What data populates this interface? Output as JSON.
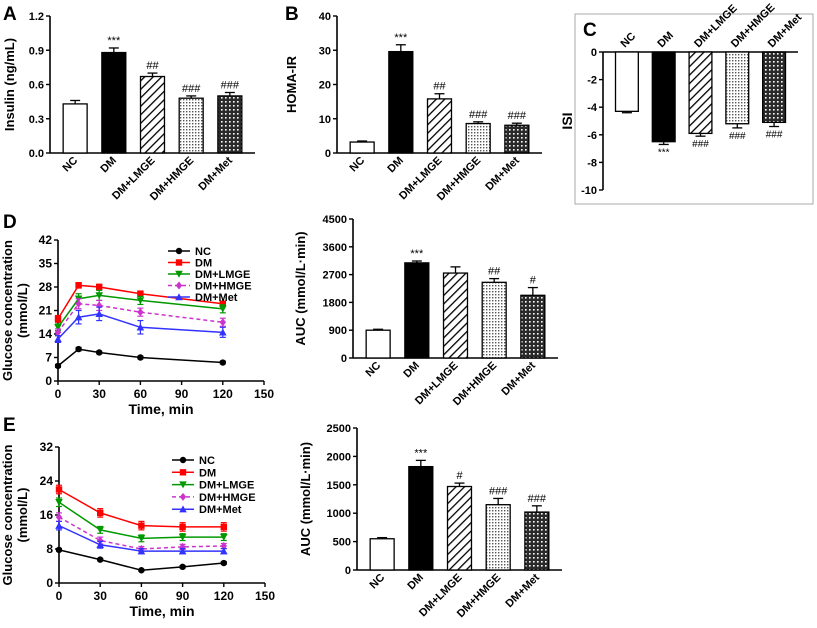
{
  "panels": [
    {
      "letter": "A"
    },
    {
      "letter": "B"
    },
    {
      "letter": "C"
    },
    {
      "letter": "D"
    },
    {
      "letter": "E"
    }
  ],
  "chart_data": [
    {
      "id": "A",
      "type": "bar",
      "ylabel": "Insulin (ng/mL)",
      "ylim": [
        0,
        1.2
      ],
      "yticks": [
        "0.0",
        "0.3",
        "0.6",
        "0.9",
        "1.2"
      ],
      "categories": [
        "NC",
        "DM",
        "DM+LMGE",
        "DM+HMGE",
        "DM+Met"
      ],
      "values": [
        0.43,
        0.88,
        0.67,
        0.48,
        0.5
      ],
      "errors": [
        0.03,
        0.04,
        0.03,
        0.02,
        0.03
      ],
      "annotations": [
        "",
        "***",
        "##",
        "###",
        "###"
      ],
      "patterns": [
        "white",
        "black",
        "diag",
        "dots",
        "grid"
      ]
    },
    {
      "id": "B",
      "type": "bar",
      "ylabel": "HOMA-IR",
      "ylim": [
        0,
        40
      ],
      "yticks": [
        "0",
        "10",
        "20",
        "30",
        "40"
      ],
      "categories": [
        "NC",
        "DM",
        "DM+LMGE",
        "DM+HMGE",
        "DM+Met"
      ],
      "values": [
        3.2,
        29.6,
        15.8,
        8.6,
        8.1
      ],
      "errors": [
        0.3,
        2.0,
        1.5,
        0.5,
        0.6
      ],
      "annotations": [
        "",
        "***",
        "##",
        "###",
        "###"
      ],
      "patterns": [
        "white",
        "black",
        "diag",
        "dots",
        "grid"
      ]
    },
    {
      "id": "C",
      "type": "bar",
      "ylabel": "ISI",
      "ylim": [
        -10,
        0
      ],
      "yticks": [
        "0",
        "-2",
        "-4",
        "-6",
        "-8",
        "-10"
      ],
      "categories": [
        "NC",
        "DM",
        "DM+LMGE",
        "DM+HMGE",
        "DM+Met"
      ],
      "values": [
        -4.3,
        -6.5,
        -5.9,
        -5.2,
        -5.1
      ],
      "errors": [
        0.1,
        0.2,
        0.2,
        0.3,
        0.3
      ],
      "annotations": [
        "",
        "***",
        "###",
        "###",
        "###"
      ],
      "patterns": [
        "white",
        "black",
        "diag",
        "dots",
        "grid"
      ]
    },
    {
      "id": "D-line",
      "type": "line",
      "ylabel": "Glucose concentration (mmol/L)",
      "xlabel": "Time, min",
      "xlim": [
        0,
        150
      ],
      "ylim": [
        0,
        42
      ],
      "xticks": [
        "0",
        "30",
        "60",
        "90",
        "120",
        "150"
      ],
      "yticks": [
        "0",
        "7",
        "14",
        "21",
        "28",
        "35",
        "42"
      ],
      "x": [
        0,
        15,
        30,
        60,
        120
      ],
      "series": [
        {
          "name": "NC",
          "color": "#000000",
          "marker": "circle",
          "dash": "",
          "values": [
            4.5,
            9.5,
            8.5,
            7.0,
            5.5
          ],
          "errors": [
            0.4,
            0.5,
            0.4,
            0.4,
            0.4
          ]
        },
        {
          "name": "DM",
          "color": "#ff0000",
          "marker": "square",
          "dash": "",
          "values": [
            18.5,
            28.5,
            28.0,
            26.0,
            23.0
          ],
          "errors": [
            1.0,
            0.8,
            0.8,
            0.8,
            0.8
          ]
        },
        {
          "name": "DM+LMGE",
          "color": "#009900",
          "marker": "triangle-down",
          "dash": "",
          "values": [
            16.0,
            24.5,
            25.5,
            24.0,
            21.5
          ],
          "errors": [
            1.0,
            1.5,
            1.5,
            1.2,
            1.2
          ]
        },
        {
          "name": "DM+HMGE",
          "color": "#cc33cc",
          "marker": "diamond",
          "dash": "4,3",
          "values": [
            14.5,
            23.0,
            22.5,
            20.5,
            17.5
          ],
          "errors": [
            1.0,
            1.5,
            1.5,
            1.2,
            1.2
          ]
        },
        {
          "name": "DM+Met",
          "color": "#3333ff",
          "marker": "triangle-up",
          "dash": "",
          "values": [
            12.5,
            19.0,
            20.0,
            16.0,
            14.5
          ],
          "errors": [
            1.0,
            2.0,
            2.0,
            2.0,
            1.5
          ]
        }
      ]
    },
    {
      "id": "D-auc",
      "type": "bar",
      "ylabel": "AUC (mmol/L·min)",
      "ylim": [
        0,
        4500
      ],
      "yticks": [
        "0",
        "900",
        "1800",
        "2700",
        "3600",
        "4500"
      ],
      "categories": [
        "NC",
        "DM",
        "DM+LMGE",
        "DM+HMGE",
        "DM+Met"
      ],
      "values": [
        900,
        3080,
        2750,
        2450,
        2030
      ],
      "errors": [
        30,
        60,
        200,
        120,
        250
      ],
      "annotations": [
        "",
        "***",
        "",
        "##",
        "#"
      ],
      "patterns": [
        "white",
        "black",
        "diag",
        "dots",
        "grid"
      ]
    },
    {
      "id": "E-line",
      "type": "line",
      "ylabel": "Glucose concentration (mmol/L)",
      "xlabel": "Time, min",
      "xlim": [
        0,
        150
      ],
      "ylim": [
        0,
        32
      ],
      "xticks": [
        "0",
        "30",
        "60",
        "90",
        "120",
        "150"
      ],
      "yticks": [
        "0",
        "8",
        "16",
        "24",
        "32"
      ],
      "x": [
        0,
        30,
        60,
        90,
        120
      ],
      "series": [
        {
          "name": "NC",
          "color": "#000000",
          "marker": "circle",
          "dash": "",
          "values": [
            7.8,
            5.5,
            3.0,
            3.8,
            4.7
          ],
          "errors": [
            0.3,
            0.3,
            0.2,
            0.3,
            0.3
          ]
        },
        {
          "name": "DM",
          "color": "#ff0000",
          "marker": "square",
          "dash": "",
          "values": [
            22.0,
            16.5,
            13.5,
            13.2,
            13.2
          ],
          "errors": [
            1.0,
            1.0,
            1.0,
            1.0,
            1.0
          ]
        },
        {
          "name": "DM+LMGE",
          "color": "#009900",
          "marker": "triangle-down",
          "dash": "",
          "values": [
            19.0,
            12.5,
            10.5,
            10.8,
            10.8
          ],
          "errors": [
            1.0,
            0.8,
            0.8,
            0.8,
            0.8
          ]
        },
        {
          "name": "DM+HMGE",
          "color": "#cc33cc",
          "marker": "diamond",
          "dash": "4,3",
          "values": [
            15.5,
            10.0,
            8.0,
            8.5,
            8.7
          ],
          "errors": [
            1.0,
            0.8,
            0.6,
            0.6,
            0.6
          ]
        },
        {
          "name": "DM+Met",
          "color": "#3333ff",
          "marker": "triangle-up",
          "dash": "",
          "values": [
            13.5,
            9.0,
            7.5,
            7.5,
            7.5
          ],
          "errors": [
            1.0,
            0.8,
            0.6,
            0.6,
            0.6
          ]
        }
      ]
    },
    {
      "id": "E-auc",
      "type": "bar",
      "ylabel": "AUC (mmol/L·min)",
      "ylim": [
        0,
        2500
      ],
      "yticks": [
        "0",
        "500",
        "1000",
        "1500",
        "2000",
        "2500"
      ],
      "categories": [
        "NC",
        "DM",
        "DM+LMGE",
        "DM+HMGE",
        "DM+Met"
      ],
      "values": [
        550,
        1820,
        1470,
        1150,
        1020
      ],
      "errors": [
        20,
        110,
        60,
        110,
        110
      ],
      "annotations": [
        "",
        "***",
        "#",
        "###",
        "###"
      ],
      "patterns": [
        "white",
        "black",
        "diag",
        "dots",
        "grid"
      ]
    }
  ]
}
